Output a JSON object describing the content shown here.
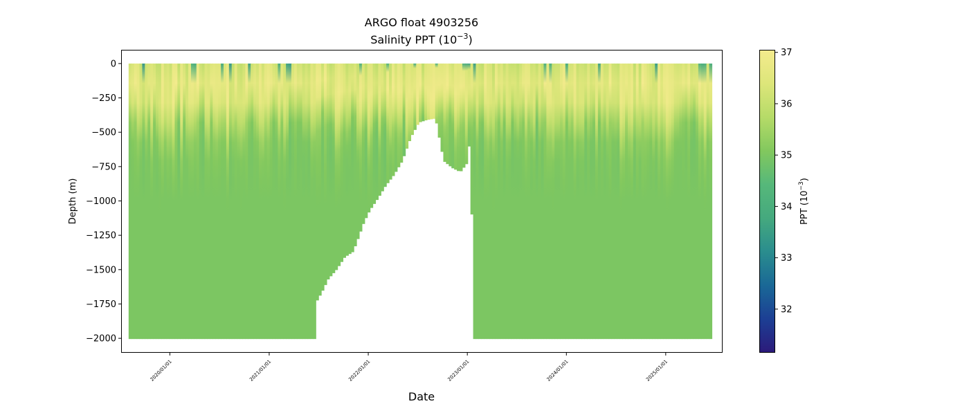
{
  "chart_data": {
    "type": "heatmap",
    "title": "ARGO float 4903256",
    "subtitle_text": "Salinity PPT (10",
    "subtitle_exponent": "−3",
    "subtitle_close": ")",
    "xlabel": "Date",
    "ylabel": "Depth (m)",
    "ylim": [
      -2100,
      100
    ],
    "xlim": [
      "2019-07-08",
      "2025-07-27"
    ],
    "yticks": [
      0,
      -250,
      -500,
      -750,
      -1000,
      -1250,
      -1500,
      -1750,
      -2000
    ],
    "ytick_labels": [
      "0",
      "−250",
      "−500",
      "−750",
      "−1000",
      "−1250",
      "−1500",
      "−1750",
      "−2000"
    ],
    "xticks": [
      "2020-01-01",
      "2021-01-01",
      "2022-01-01",
      "2023-01-01",
      "2024-01-01",
      "2025-01-01"
    ],
    "xtick_labels": [
      "2020/01/01",
      "2021/01/01",
      "2022/01/01",
      "2023/01/01",
      "2024/01/01",
      "2025/01/01"
    ],
    "colorbar": {
      "label_text": "PPT (10",
      "label_exponent": "−3",
      "label_close": ")",
      "range": [
        31.15,
        37.05
      ],
      "ticks": [
        32,
        33,
        34,
        35,
        36,
        37
      ],
      "tick_labels": [
        "32",
        "33",
        "34",
        "35",
        "36",
        "37"
      ],
      "colormap_stops": [
        "#2c1a7a",
        "#1c3f94",
        "#1a6896",
        "#2a8d8e",
        "#45a97e",
        "#56b87a",
        "#82c85e",
        "#b6db68",
        "#dde67a",
        "#f4eb8d"
      ]
    },
    "profile_range": [
      "2019-08-02",
      "2025-06-20"
    ],
    "max_depth_profiles": {
      "dates": [
        "2019-08-02",
        "2021-06-15",
        "2021-06-20",
        "2021-07-10",
        "2021-08-01",
        "2021-09-01",
        "2021-10-01",
        "2021-11-01",
        "2021-11-20",
        "2021-12-10",
        "2022-01-01",
        "2022-02-01",
        "2022-03-01",
        "2022-04-01",
        "2022-05-01",
        "2022-06-01",
        "2022-07-01",
        "2022-08-01",
        "2022-09-01",
        "2022-10-01",
        "2022-11-01",
        "2022-12-01",
        "2023-01-01",
        "2023-01-05",
        "2023-01-10",
        "2023-01-20",
        "2025-06-20"
      ],
      "depths": [
        -1995,
        -1995,
        -1720,
        -1650,
        -1560,
        -1490,
        -1400,
        -1360,
        -1260,
        -1150,
        -1060,
        -970,
        -880,
        -800,
        -700,
        -530,
        -420,
        -400,
        -390,
        -700,
        -750,
        -780,
        -700,
        -400,
        -800,
        -1995,
        -1995
      ]
    },
    "salinity_profile": {
      "depths": [
        0,
        -50,
        -100,
        -200,
        -300,
        -400,
        -500,
        -600,
        -800,
        -1000,
        -2000
      ],
      "values": [
        36.3,
        36.4,
        36.5,
        36.7,
        36.3,
        35.8,
        35.3,
        35.1,
        35.0,
        35.0,
        35.0
      ]
    }
  }
}
